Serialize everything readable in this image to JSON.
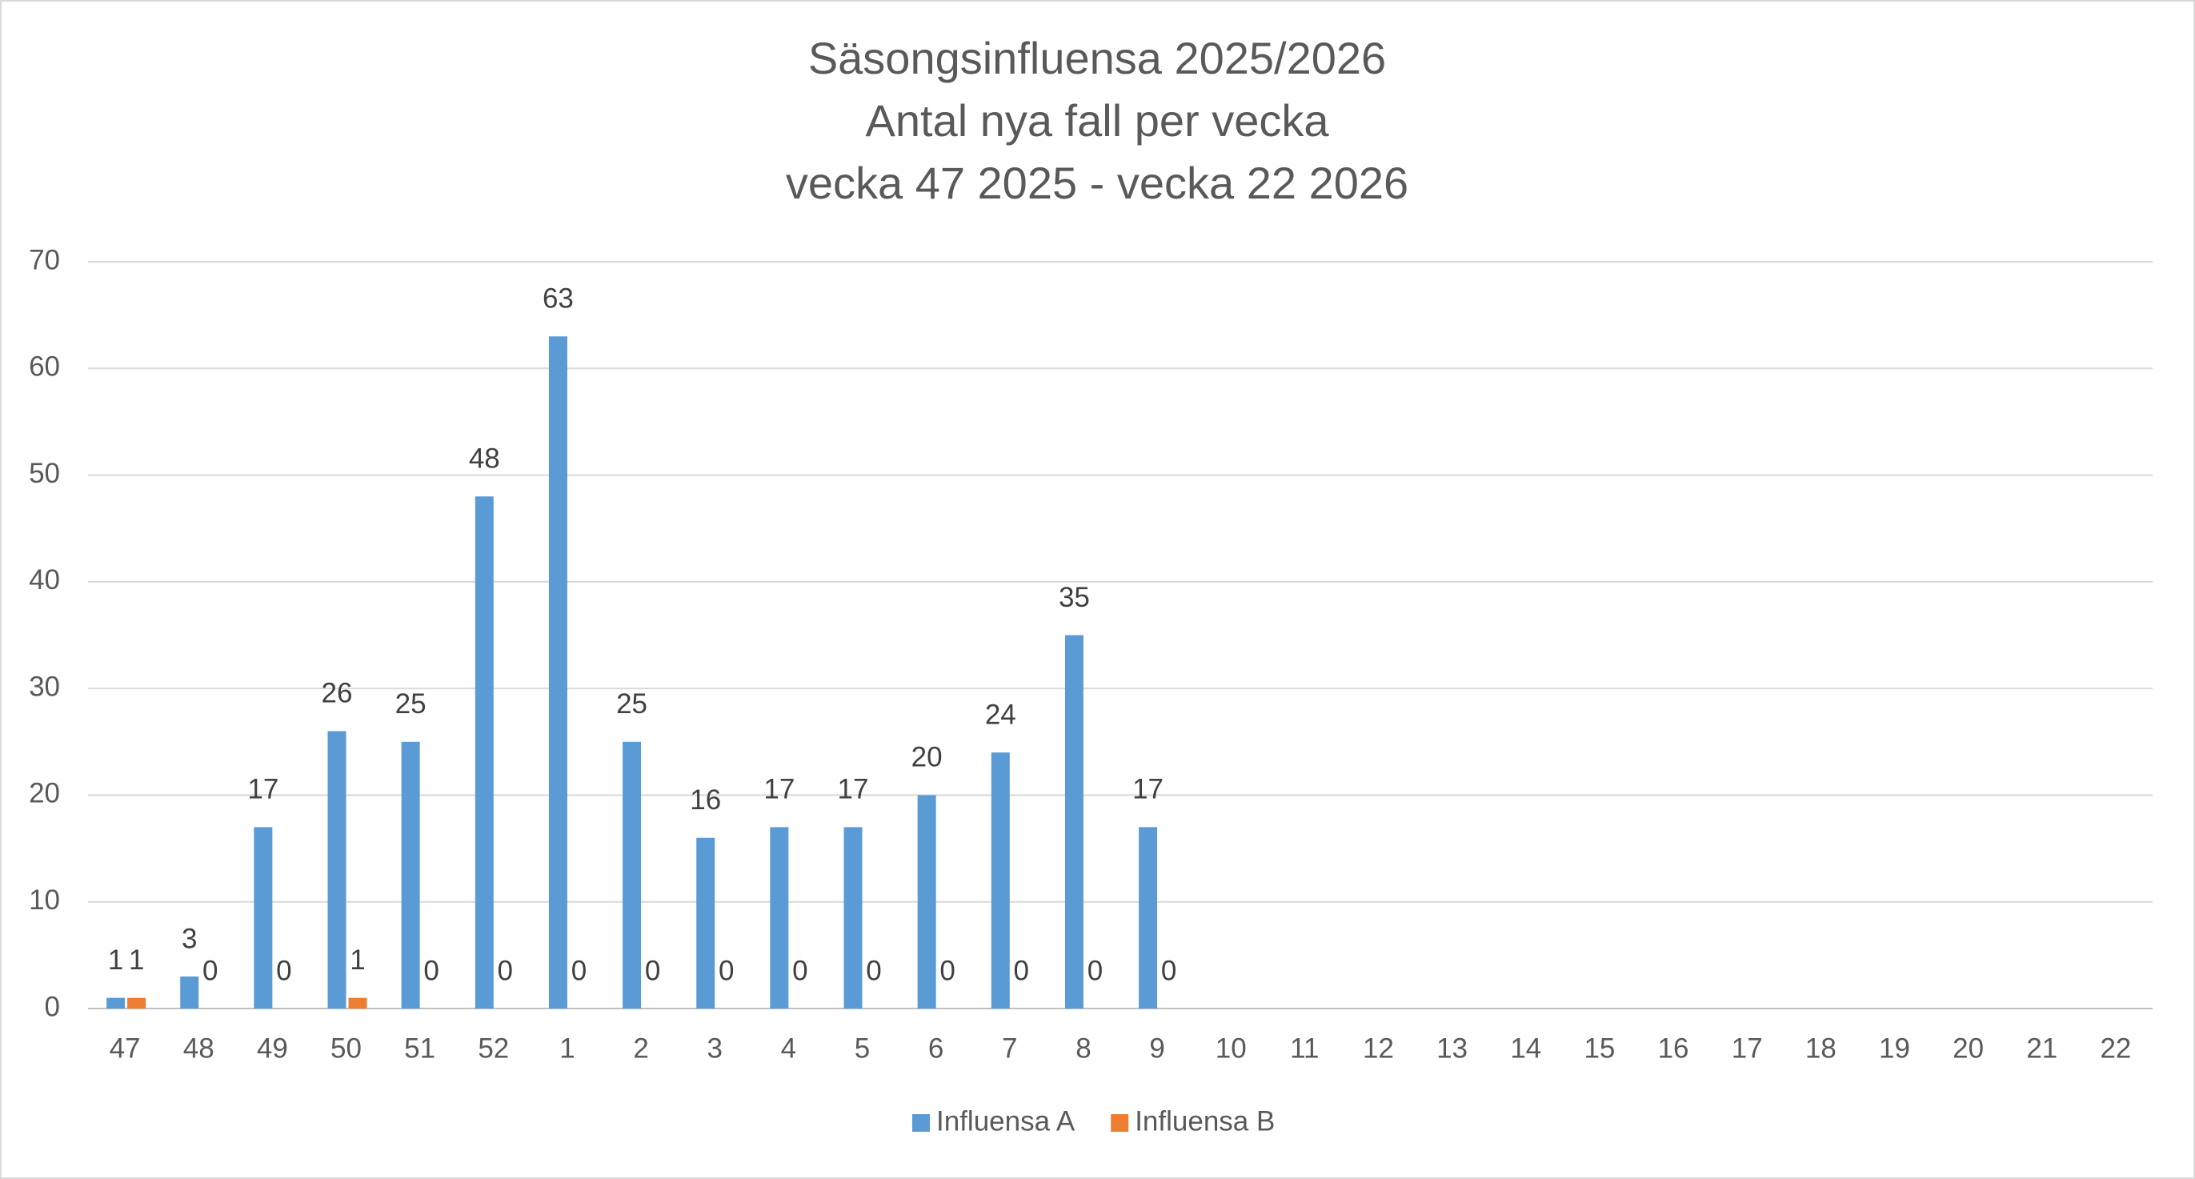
{
  "chart_data": {
    "type": "bar",
    "title": [
      "Säsongsinfluensa 2025/2026",
      "Antal nya fall per vecka",
      "vecka 47 2025 - vecka 22 2026"
    ],
    "categories": [
      "47",
      "48",
      "49",
      "50",
      "51",
      "52",
      "1",
      "2",
      "3",
      "4",
      "5",
      "6",
      "7",
      "8",
      "9",
      "10",
      "11",
      "12",
      "13",
      "14",
      "15",
      "16",
      "17",
      "18",
      "19",
      "20",
      "21",
      "22"
    ],
    "series": [
      {
        "name": "Influensa A",
        "color": "#5b9bd5",
        "values": [
          1,
          3,
          17,
          26,
          25,
          48,
          63,
          25,
          16,
          17,
          17,
          20,
          24,
          35,
          17,
          null,
          null,
          null,
          null,
          null,
          null,
          null,
          null,
          null,
          null,
          null,
          null,
          null
        ]
      },
      {
        "name": "Influensa B",
        "color": "#ed7d31",
        "values": [
          1,
          0,
          0,
          1,
          0,
          0,
          0,
          0,
          0,
          0,
          0,
          0,
          0,
          0,
          0,
          null,
          null,
          null,
          null,
          null,
          null,
          null,
          null,
          null,
          null,
          null,
          null,
          null
        ]
      }
    ],
    "ylim": [
      0,
      70
    ],
    "yticks": [
      0,
      10,
      20,
      30,
      40,
      50,
      60,
      70
    ],
    "grid": true,
    "legend": "bottom"
  }
}
